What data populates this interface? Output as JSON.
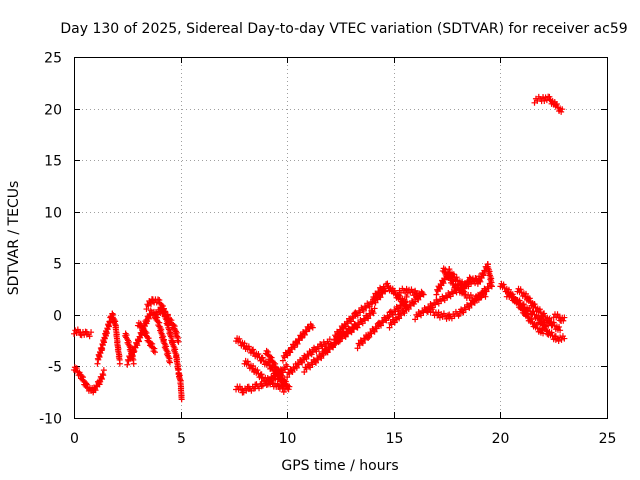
{
  "chart_data": {
    "type": "scatter",
    "title": "Day 130 of 2025, Sidereal Day-to-day VTEC variation (SDTVAR) for receiver ac59",
    "xlabel": "GPS time / hours",
    "ylabel": "SDTVAR / TECUs",
    "xlim": [
      0,
      25
    ],
    "ylim": [
      -10,
      25
    ],
    "xticks": [
      0,
      5,
      10,
      15,
      20,
      25
    ],
    "yticks": [
      -10,
      -5,
      0,
      5,
      10,
      15,
      20,
      25
    ],
    "grid": true,
    "marker": "+",
    "series": [
      {
        "name": "SDTVAR",
        "color": "#ff0000",
        "tracks": [
          [
            [
              0.0,
              -1.6
            ],
            [
              0.3,
              -1.7
            ],
            [
              0.6,
              -1.9
            ],
            [
              0.8,
              -1.8
            ]
          ],
          [
            [
              0.0,
              -5.1
            ],
            [
              0.3,
              -5.8
            ],
            [
              0.6,
              -7.0
            ],
            [
              0.9,
              -7.4
            ],
            [
              1.2,
              -6.5
            ],
            [
              1.4,
              -5.6
            ]
          ],
          [
            [
              1.1,
              -4.5
            ],
            [
              1.3,
              -3.2
            ],
            [
              1.5,
              -1.8
            ],
            [
              1.7,
              -0.5
            ],
            [
              1.8,
              0.0
            ],
            [
              1.95,
              -1.0
            ],
            [
              2.05,
              -3.0
            ],
            [
              2.15,
              -4.5
            ]
          ],
          [
            [
              2.4,
              -1.8
            ],
            [
              2.6,
              -3.0
            ],
            [
              2.8,
              -4.5
            ]
          ],
          [
            [
              2.5,
              -4.6
            ],
            [
              2.8,
              -3.4
            ],
            [
              3.0,
              -2.6
            ],
            [
              3.2,
              -1.6
            ],
            [
              3.4,
              -0.6
            ],
            [
              3.6,
              0.2
            ],
            [
              3.8,
              0.0
            ],
            [
              4.0,
              -1.0
            ],
            [
              4.2,
              -2.5
            ],
            [
              4.5,
              -4.5
            ]
          ],
          [
            [
              3.0,
              -0.8
            ],
            [
              3.3,
              -1.5
            ],
            [
              3.5,
              -2.5
            ],
            [
              3.8,
              -3.5
            ]
          ],
          [
            [
              3.4,
              0.8
            ],
            [
              3.7,
              1.5
            ],
            [
              4.0,
              1.2
            ],
            [
              4.2,
              0.5
            ],
            [
              4.4,
              -1.0
            ],
            [
              4.6,
              -2.5
            ],
            [
              4.8,
              -4.0
            ],
            [
              4.9,
              -5.5
            ],
            [
              5.0,
              -6.5
            ],
            [
              5.05,
              -8.2
            ]
          ],
          [
            [
              3.8,
              0.0
            ],
            [
              4.1,
              0.5
            ],
            [
              4.4,
              -0.2
            ],
            [
              4.7,
              -1.2
            ],
            [
              4.9,
              -2.5
            ]
          ],
          [
            [
              7.6,
              -2.3
            ],
            [
              8.0,
              -3.0
            ],
            [
              8.4,
              -3.6
            ],
            [
              8.8,
              -4.3
            ],
            [
              9.2,
              -5.0
            ],
            [
              9.6,
              -6.0
            ],
            [
              9.9,
              -7.0
            ]
          ],
          [
            [
              7.6,
              -7.0
            ],
            [
              7.9,
              -7.3
            ],
            [
              8.2,
              -7.2
            ],
            [
              8.5,
              -7.0
            ],
            [
              8.8,
              -6.8
            ],
            [
              9.1,
              -6.5
            ],
            [
              9.4,
              -6.0
            ],
            [
              9.7,
              -5.5
            ],
            [
              10.0,
              -5.0
            ]
          ],
          [
            [
              8.0,
              -4.5
            ],
            [
              8.4,
              -5.2
            ],
            [
              8.8,
              -6.0
            ],
            [
              9.2,
              -6.5
            ],
            [
              9.6,
              -7.0
            ],
            [
              9.9,
              -7.3
            ]
          ],
          [
            [
              9.0,
              -3.5
            ],
            [
              9.3,
              -4.5
            ],
            [
              9.6,
              -5.6
            ],
            [
              9.9,
              -6.6
            ],
            [
              10.1,
              -7.2
            ]
          ],
          [
            [
              9.8,
              -4.2
            ],
            [
              10.1,
              -3.5
            ],
            [
              10.4,
              -2.8
            ],
            [
              10.7,
              -2.0
            ],
            [
              11.0,
              -1.3
            ],
            [
              11.2,
              -1.0
            ]
          ],
          [
            [
              10.0,
              -5.8
            ],
            [
              10.4,
              -5.0
            ],
            [
              10.8,
              -4.2
            ],
            [
              11.2,
              -3.5
            ],
            [
              11.6,
              -3.0
            ],
            [
              12.0,
              -2.6
            ]
          ],
          [
            [
              10.8,
              -5.3
            ],
            [
              11.3,
              -4.5
            ],
            [
              11.8,
              -3.6
            ],
            [
              12.3,
              -2.6
            ],
            [
              12.8,
              -1.8
            ],
            [
              13.3,
              -1.0
            ]
          ],
          [
            [
              11.6,
              -3.8
            ],
            [
              12.1,
              -3.0
            ],
            [
              12.6,
              -2.0
            ],
            [
              13.1,
              -1.2
            ],
            [
              13.6,
              -0.5
            ],
            [
              14.1,
              0.5
            ]
          ],
          [
            [
              12.2,
              -2.2
            ],
            [
              12.7,
              -1.0
            ],
            [
              13.2,
              0.0
            ],
            [
              13.7,
              0.8
            ],
            [
              14.2,
              1.5
            ],
            [
              14.6,
              2.5
            ]
          ],
          [
            [
              13.3,
              -3.0
            ],
            [
              13.8,
              -2.0
            ],
            [
              14.3,
              -1.0
            ],
            [
              14.8,
              0.0
            ],
            [
              15.3,
              0.8
            ],
            [
              15.6,
              1.5
            ]
          ],
          [
            [
              14.0,
              1.5
            ],
            [
              14.4,
              2.5
            ],
            [
              14.7,
              2.8
            ],
            [
              15.0,
              2.2
            ],
            [
              15.3,
              1.5
            ],
            [
              15.6,
              1.0
            ]
          ],
          [
            [
              14.8,
              -1.0
            ],
            [
              15.2,
              -0.2
            ],
            [
              15.6,
              0.6
            ],
            [
              16.0,
              1.4
            ],
            [
              16.4,
              2.2
            ]
          ],
          [
            [
              15.2,
              2.2
            ],
            [
              15.6,
              2.4
            ],
            [
              16.0,
              2.1
            ],
            [
              16.3,
              1.9
            ]
          ],
          [
            [
              16.0,
              -0.2
            ],
            [
              16.5,
              0.5
            ],
            [
              17.0,
              1.2
            ],
            [
              17.5,
              1.8
            ],
            [
              18.0,
              2.5
            ],
            [
              18.5,
              3.0
            ],
            [
              19.0,
              3.5
            ]
          ],
          [
            [
              16.6,
              0.5
            ],
            [
              17.1,
              0.0
            ],
            [
              17.6,
              -0.2
            ],
            [
              18.1,
              0.2
            ],
            [
              18.6,
              1.0
            ],
            [
              19.1,
              2.0
            ],
            [
              19.6,
              3.0
            ]
          ],
          [
            [
              17.0,
              2.2
            ],
            [
              17.3,
              3.2
            ],
            [
              17.6,
              4.2
            ],
            [
              17.9,
              3.5
            ],
            [
              18.3,
              2.8
            ]
          ],
          [
            [
              17.3,
              4.5
            ],
            [
              17.8,
              3.0
            ],
            [
              18.3,
              2.0
            ],
            [
              18.8,
              1.5
            ],
            [
              19.3,
              2.0
            ]
          ],
          [
            [
              18.2,
              2.5
            ],
            [
              18.6,
              3.5
            ],
            [
              19.0,
              3.2
            ],
            [
              19.4,
              4.8
            ],
            [
              19.6,
              3.0
            ]
          ],
          [
            [
              20.0,
              3.0
            ],
            [
              20.4,
              2.2
            ],
            [
              20.8,
              1.2
            ],
            [
              21.2,
              0.0
            ],
            [
              21.6,
              -1.0
            ],
            [
              22.0,
              -1.8
            ]
          ],
          [
            [
              20.3,
              2.0
            ],
            [
              20.7,
              1.5
            ],
            [
              21.1,
              0.8
            ],
            [
              21.5,
              0.2
            ],
            [
              21.9,
              -0.5
            ],
            [
              22.3,
              -1.0
            ]
          ],
          [
            [
              20.8,
              2.5
            ],
            [
              21.2,
              1.8
            ],
            [
              21.6,
              0.8
            ],
            [
              22.0,
              0.0
            ],
            [
              22.4,
              -0.8
            ],
            [
              22.8,
              -1.5
            ]
          ],
          [
            [
              21.8,
              -0.5
            ],
            [
              22.2,
              -1.6
            ],
            [
              22.6,
              -2.3
            ],
            [
              23.0,
              -2.3
            ]
          ],
          [
            [
              22.5,
              0.0
            ],
            [
              22.8,
              -0.3
            ],
            [
              23.0,
              -0.5
            ]
          ],
          [
            [
              21.6,
              20.8
            ],
            [
              22.0,
              21.0
            ],
            [
              22.3,
              20.9
            ],
            [
              22.6,
              20.3
            ],
            [
              22.9,
              19.7
            ]
          ]
        ]
      }
    ]
  }
}
